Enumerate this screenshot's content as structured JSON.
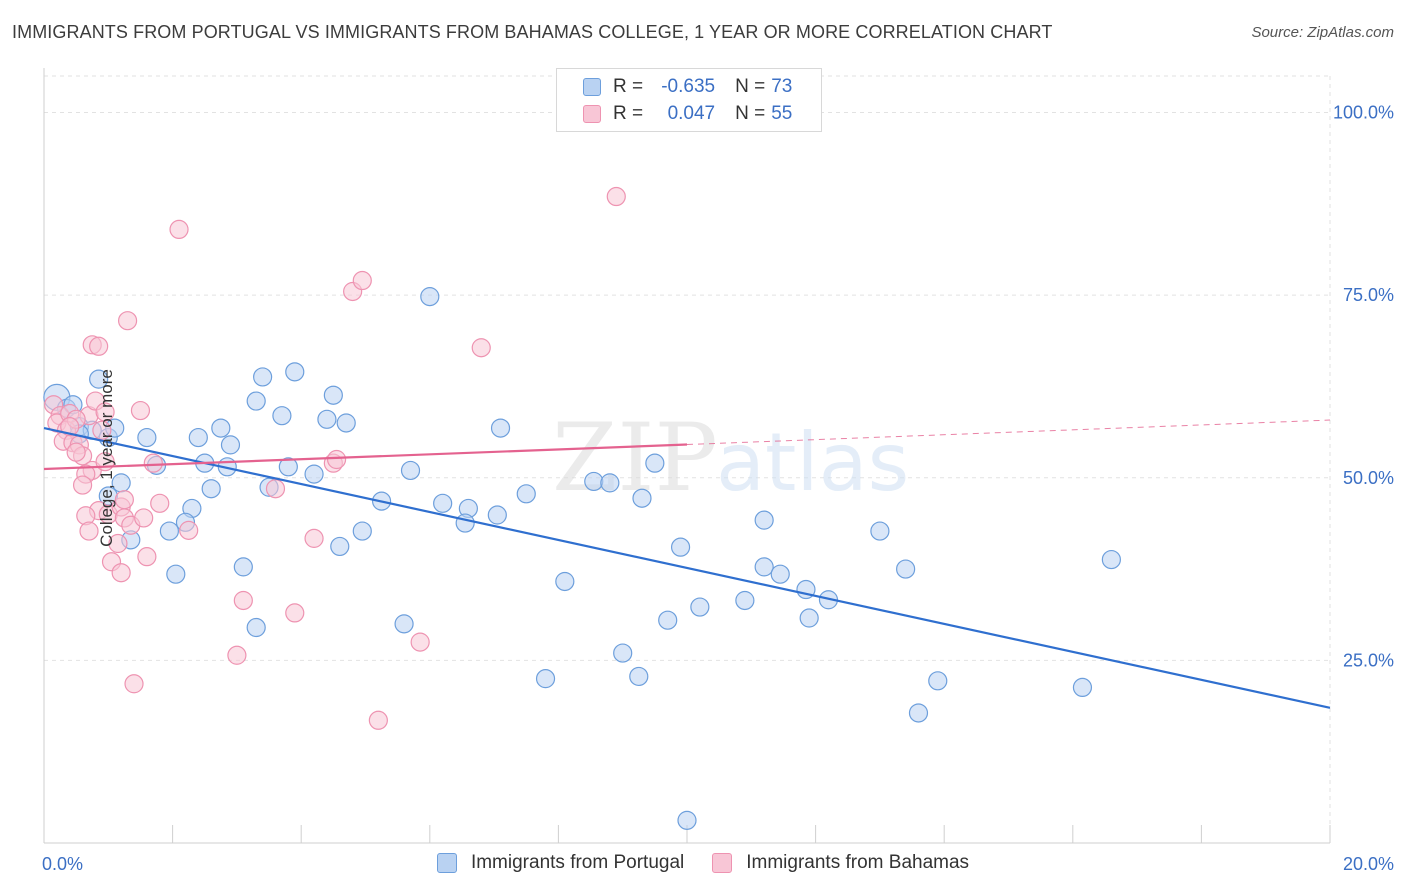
{
  "title": "IMMIGRANTS FROM PORTUGAL VS IMMIGRANTS FROM BAHAMAS COLLEGE, 1 YEAR OR MORE CORRELATION CHART",
  "source": "Source: ZipAtlas.com",
  "watermark": {
    "zip": "ZIP",
    "atlas": "atlas"
  },
  "colors": {
    "blue_fill": "#b9d2f2",
    "blue_stroke": "#6d9fdc",
    "blue_line": "#2f6fcf",
    "pink_fill": "#f8c6d6",
    "pink_stroke": "#ee93b1",
    "pink_line": "#e4628f",
    "grid": "#e2e2e2",
    "axis_text": "#3b6fc4"
  },
  "legend": {
    "rows": [
      {
        "series": "blue",
        "r_label": "R =",
        "r_value": "-0.635",
        "n_label": "N =",
        "n_value": "73"
      },
      {
        "series": "pink",
        "r_label": "R =",
        "r_value": "0.047",
        "n_label": "N =",
        "n_value": "55"
      }
    ]
  },
  "chart_data": {
    "type": "scatter",
    "title": "IMMIGRANTS FROM PORTUGAL VS IMMIGRANTS FROM BAHAMAS COLLEGE, 1 YEAR OR MORE CORRELATION CHART",
    "xlabel": "",
    "ylabel": "College, 1 year or more",
    "xlim": [
      0,
      20
    ],
    "ylim": [
      0,
      105
    ],
    "x_tick_labels": [
      {
        "value": 0,
        "label": "0.0%"
      },
      {
        "value": 20,
        "label": "20.0%"
      }
    ],
    "x_minor_ticks": [
      2,
      4,
      6,
      8,
      10,
      12,
      14,
      16,
      18
    ],
    "y_ticks": [
      {
        "value": 25,
        "label": "25.0%"
      },
      {
        "value": 50,
        "label": "50.0%"
      },
      {
        "value": 75,
        "label": "75.0%"
      },
      {
        "value": 100,
        "label": "100.0%"
      }
    ],
    "grid": true,
    "legend_position": "top-center",
    "series": [
      {
        "name": "Immigrants from Portugal",
        "color": "blue",
        "trend": {
          "x": [
            0,
            20
          ],
          "y": [
            56.8,
            18.5
          ],
          "dashed_from": null
        },
        "points": [
          [
            0.2,
            61,
            1
          ],
          [
            0.35,
            59.5,
            0
          ],
          [
            0.45,
            60,
            0
          ],
          [
            0.55,
            57,
            0
          ],
          [
            0.75,
            56.5,
            0
          ],
          [
            1.0,
            55.5,
            0
          ],
          [
            1.1,
            56.8,
            0
          ],
          [
            0.55,
            56,
            0
          ],
          [
            1.6,
            55.5,
            0
          ],
          [
            1.75,
            51.7,
            0
          ],
          [
            2.4,
            55.5,
            0
          ],
          [
            2.75,
            56.8,
            0
          ],
          [
            2.9,
            54.5,
            0
          ],
          [
            2.85,
            51.5,
            0
          ],
          [
            3.3,
            60.5,
            0
          ],
          [
            3.4,
            63.8,
            0
          ],
          [
            3.7,
            58.5,
            0
          ],
          [
            3.9,
            64.5,
            0
          ],
          [
            4.4,
            58,
            0
          ],
          [
            4.5,
            61.3,
            0
          ],
          [
            4.7,
            57.5,
            0
          ],
          [
            3.8,
            51.5,
            0
          ],
          [
            4.2,
            50.5,
            0
          ],
          [
            3.5,
            48.7,
            0
          ],
          [
            2.6,
            48.5,
            0
          ],
          [
            2.3,
            45.8,
            0
          ],
          [
            2.2,
            43.9,
            0
          ],
          [
            1.95,
            42.7,
            0
          ],
          [
            1.2,
            49.3,
            0
          ],
          [
            1.0,
            47.5,
            0
          ],
          [
            1.35,
            41.5,
            0
          ],
          [
            2.05,
            36.8,
            0
          ],
          [
            3.1,
            37.8,
            0
          ],
          [
            3.3,
            29.5,
            0
          ],
          [
            4.6,
            40.6,
            0
          ],
          [
            4.95,
            42.7,
            0
          ],
          [
            5.25,
            46.8,
            0
          ],
          [
            5.7,
            51,
            0
          ],
          [
            6.2,
            46.5,
            0
          ],
          [
            6.6,
            45.8,
            0
          ],
          [
            6.55,
            43.8,
            0
          ],
          [
            7.05,
            44.9,
            0
          ],
          [
            7.1,
            56.8,
            0
          ],
          [
            6.0,
            74.8,
            0
          ],
          [
            7.5,
            47.8,
            0
          ],
          [
            7.8,
            22.5,
            0
          ],
          [
            8.1,
            35.8,
            0
          ],
          [
            8.55,
            49.5,
            0
          ],
          [
            8.8,
            49.3,
            0
          ],
          [
            9.0,
            26,
            0
          ],
          [
            9.25,
            22.8,
            0
          ],
          [
            9.3,
            47.2,
            0
          ],
          [
            9.5,
            52,
            0
          ],
          [
            9.7,
            30.5,
            0
          ],
          [
            9.9,
            40.5,
            0
          ],
          [
            10.2,
            32.3,
            0
          ],
          [
            10.0,
            3.1,
            0
          ],
          [
            10.9,
            33.2,
            0
          ],
          [
            11.2,
            44.2,
            0
          ],
          [
            11.2,
            37.8,
            0
          ],
          [
            11.45,
            36.8,
            0
          ],
          [
            11.85,
            34.7,
            0
          ],
          [
            11.9,
            30.8,
            0
          ],
          [
            12.2,
            33.3,
            0
          ],
          [
            13.0,
            42.7,
            0
          ],
          [
            13.4,
            37.5,
            0
          ],
          [
            13.6,
            17.8,
            0
          ],
          [
            13.9,
            22.2,
            0
          ],
          [
            16.15,
            21.3,
            0
          ],
          [
            16.6,
            38.8,
            0
          ],
          [
            0.85,
            63.5,
            0
          ],
          [
            5.6,
            30,
            0
          ],
          [
            2.5,
            52,
            0
          ]
        ]
      },
      {
        "name": "Immigrants from Bahamas",
        "color": "pink",
        "trend": {
          "x": [
            0,
            20
          ],
          "y": [
            51.2,
            57.9
          ],
          "dashed_from": 10
        },
        "points": [
          [
            0.15,
            60,
            0
          ],
          [
            0.25,
            58.5,
            0
          ],
          [
            0.2,
            57.5,
            0
          ],
          [
            0.4,
            58.8,
            0
          ],
          [
            0.35,
            56.5,
            0
          ],
          [
            0.3,
            55,
            0
          ],
          [
            0.45,
            54.8,
            0
          ],
          [
            0.55,
            54.5,
            0
          ],
          [
            0.6,
            53,
            0
          ],
          [
            0.5,
            53.5,
            0
          ],
          [
            0.7,
            58.5,
            0
          ],
          [
            0.8,
            60.5,
            0
          ],
          [
            0.95,
            59,
            0
          ],
          [
            1.5,
            59.2,
            0
          ],
          [
            0.9,
            56.5,
            0
          ],
          [
            0.75,
            51,
            0
          ],
          [
            0.65,
            50.5,
            0
          ],
          [
            0.6,
            49,
            0
          ],
          [
            0.85,
            45.5,
            0
          ],
          [
            1.0,
            45,
            0
          ],
          [
            1.2,
            46,
            0
          ],
          [
            1.25,
            44.5,
            0
          ],
          [
            0.65,
            44.8,
            0
          ],
          [
            0.7,
            42.7,
            0
          ],
          [
            1.05,
            38.5,
            0
          ],
          [
            1.15,
            41,
            0
          ],
          [
            1.2,
            37,
            0
          ],
          [
            1.35,
            43.5,
            0
          ],
          [
            1.55,
            44.5,
            0
          ],
          [
            1.6,
            39.2,
            0
          ],
          [
            1.7,
            52,
            0
          ],
          [
            0.75,
            68.2,
            0
          ],
          [
            0.85,
            68,
            0
          ],
          [
            1.3,
            71.5,
            0
          ],
          [
            2.1,
            84,
            0
          ],
          [
            2.25,
            42.8,
            0
          ],
          [
            3.0,
            25.7,
            0
          ],
          [
            3.1,
            33.2,
            0
          ],
          [
            3.6,
            48.5,
            0
          ],
          [
            3.9,
            31.5,
            0
          ],
          [
            4.2,
            41.7,
            0
          ],
          [
            4.5,
            52,
            0
          ],
          [
            4.55,
            52.5,
            0
          ],
          [
            4.8,
            75.5,
            0
          ],
          [
            4.95,
            77,
            0
          ],
          [
            5.2,
            16.8,
            0
          ],
          [
            5.85,
            27.5,
            0
          ],
          [
            6.8,
            67.8,
            0
          ],
          [
            8.9,
            88.5,
            0
          ],
          [
            1.4,
            21.8,
            0
          ],
          [
            0.5,
            58,
            0
          ],
          [
            0.4,
            57,
            0
          ],
          [
            1.25,
            47,
            0
          ],
          [
            0.95,
            52.2,
            0
          ],
          [
            1.8,
            46.5,
            0
          ]
        ]
      }
    ]
  }
}
